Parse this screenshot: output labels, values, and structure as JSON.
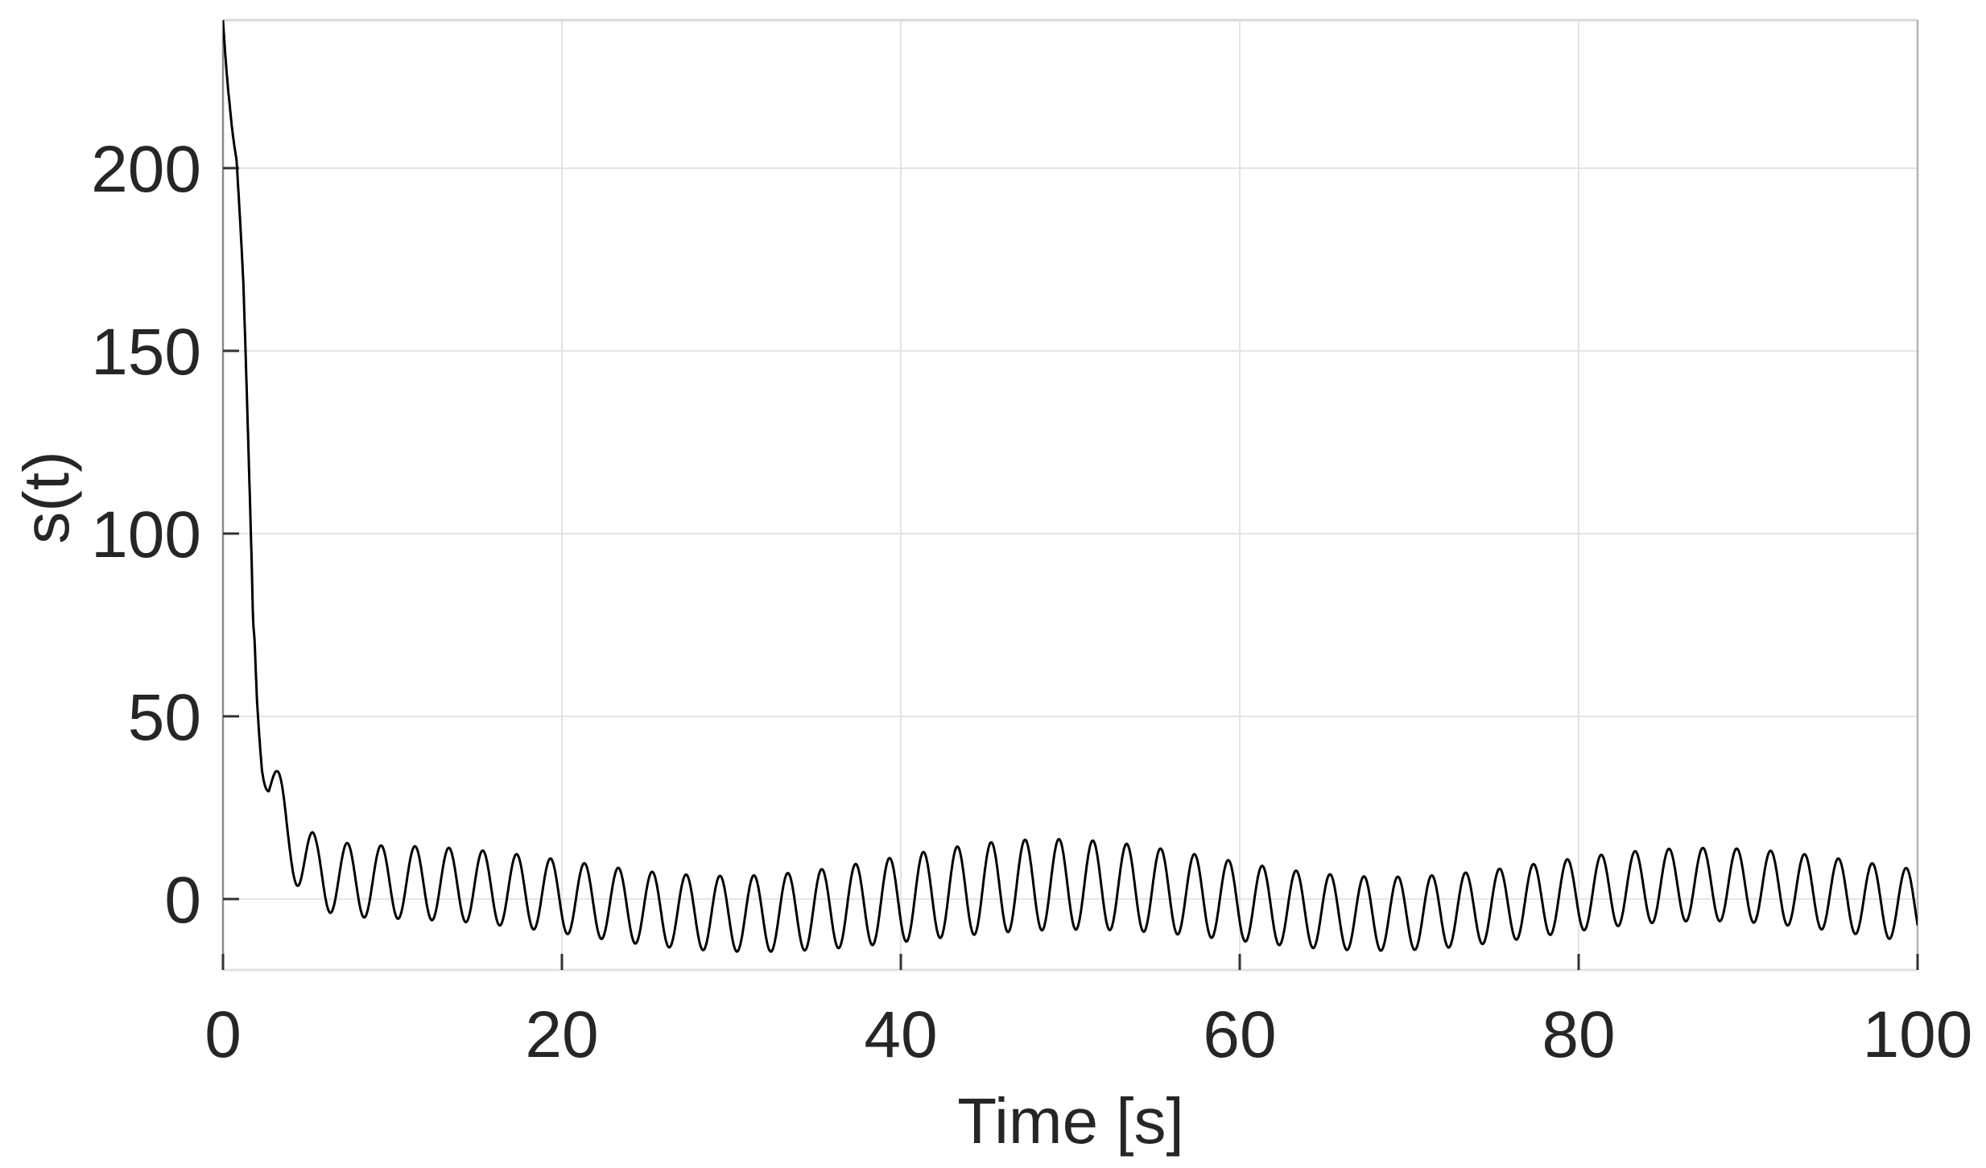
{
  "chart_data": {
    "type": "line",
    "title": "",
    "xlabel": "Time [s]",
    "ylabel": "s(t)",
    "xlim": [
      0,
      100
    ],
    "ylim": [
      -19.4,
      240.5
    ],
    "x_ticks": [
      0,
      20,
      40,
      60,
      80,
      100
    ],
    "x_tick_labels": [
      "0",
      "20",
      "40",
      "60",
      "80",
      "100"
    ],
    "y_ticks": [
      0,
      50,
      100,
      150,
      200
    ],
    "y_tick_labels": [
      "0",
      "50",
      "100",
      "150",
      "200"
    ],
    "grid": true,
    "legend": "none",
    "series": [
      {
        "name": "s(t)",
        "color": "#000000",
        "sample_dt": 0.02,
        "t_range": [
          0,
          100
        ],
        "model": {
          "description": "steep initial decay from ~240 with a small notch at s~80 (t~1.7), settling by t~6 into a ~0.5 Hz oscillation (period ~2 s) with slow baseline/beat modulation (period ~38 s); amplitude ~±10, peaks up to ~+17 near t~47, troughs to ~-14; ends ~-6 at t=100",
          "components": [
            {
              "kind": "table",
              "points": [
                [
                  0,
                  247
                ],
                [
                  0.4,
                  228
                ],
                [
                  0.8,
                  204
                ],
                [
                  1.2,
                  160
                ],
                [
                  1.5,
                  115
                ],
                [
                  1.71,
                  86
                ],
                [
                  2,
                  60
                ],
                [
                  2.3,
                  45
                ],
                [
                  2.7,
                  33
                ],
                [
                  3.2,
                  25
                ],
                [
                  3.8,
                  17
                ],
                [
                  4.5,
                  11
                ],
                [
                  5.5,
                  5
                ],
                [
                  7,
                  2.5
                ],
                [
                  9,
                  1
                ],
                [
                  12,
                  0.3
                ],
                [
                  16,
                  0
                ],
                [
                  100,
                  0
                ]
              ]
            },
            {
              "kind": "sine",
              "A": 4,
              "period": 38,
              "t0": 2
            },
            {
              "kind": "am_sine",
              "base_A": 10,
              "extra_A": 2.5,
              "extra_center": 47,
              "extra_width": 12,
              "period": 2,
              "t0": 0.83
            },
            {
              "kind": "gauss",
              "A": -5,
              "center": 1.78,
              "width": 0.055
            }
          ]
        }
      }
    ],
    "key_points": [
      {
        "t": 0,
        "s": 240.5,
        "note": "initial value, touches top of axes"
      },
      {
        "t": 1.7,
        "s": 80,
        "note": "small glitch/notch on the decay"
      },
      {
        "t": 6.3,
        "s": -5,
        "note": "first minimum after decay"
      },
      {
        "t": 11.5,
        "s": 14,
        "note": "early oscillation peaks ~ +13..15"
      },
      {
        "t": 27,
        "s": -13,
        "note": "troughs deepen while baseline dips"
      },
      {
        "t": 47,
        "s": 16.5,
        "note": "largest peaks of middle beat"
      },
      {
        "t": 67,
        "s": -13,
        "note": "second baseline dip"
      },
      {
        "t": 88,
        "s": 15,
        "note": "late beat peaks ~ +15"
      },
      {
        "t": 100,
        "s": -6,
        "note": "final value at right edge"
      }
    ],
    "oscillation": {
      "fast_period_s": 2.0,
      "slow_beat_period_s": 38
    }
  },
  "style": {
    "background": "#ffffff",
    "line_color": "#000000",
    "text_color": "#262626",
    "grid_color": "#e3e3e3",
    "tick_color": "#333333",
    "spine_left": "#8c8c8c",
    "spine_right": "#b3b3b3",
    "spine_top": "#d9d9d9",
    "spine_bottom": "#e0e0e0"
  }
}
